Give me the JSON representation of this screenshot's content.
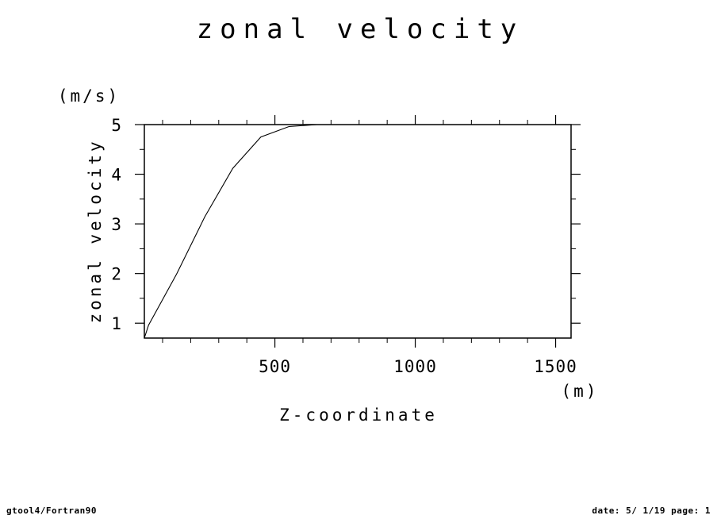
{
  "chart_data": {
    "type": "line",
    "title": "zonal velocity",
    "xlabel": "Z-coordinate",
    "xunit": "(m)",
    "ylabel": "zonal velocity",
    "yunit": "(m/s)",
    "xlim": [
      35,
      1555
    ],
    "ylim": [
      0.7,
      5.0
    ],
    "xticks": [
      500,
      1000,
      1500
    ],
    "yticks": [
      1,
      2,
      3,
      4,
      5
    ],
    "series": [
      {
        "x": [
          35,
          50,
          150,
          250,
          350,
          450,
          550,
          650,
          750,
          850,
          950,
          1050,
          1150,
          1250,
          1350,
          1450,
          1550
        ],
        "y": [
          0.7,
          0.96,
          1.99,
          3.14,
          4.12,
          4.75,
          4.96,
          5.0,
          5.0,
          5.0,
          5.0,
          5.0,
          5.0,
          5.0,
          5.0,
          5.0,
          5.0
        ]
      }
    ]
  },
  "footer": {
    "left": "gtool4/Fortran90",
    "right": "date: 5/ 1/19 page: 1"
  }
}
